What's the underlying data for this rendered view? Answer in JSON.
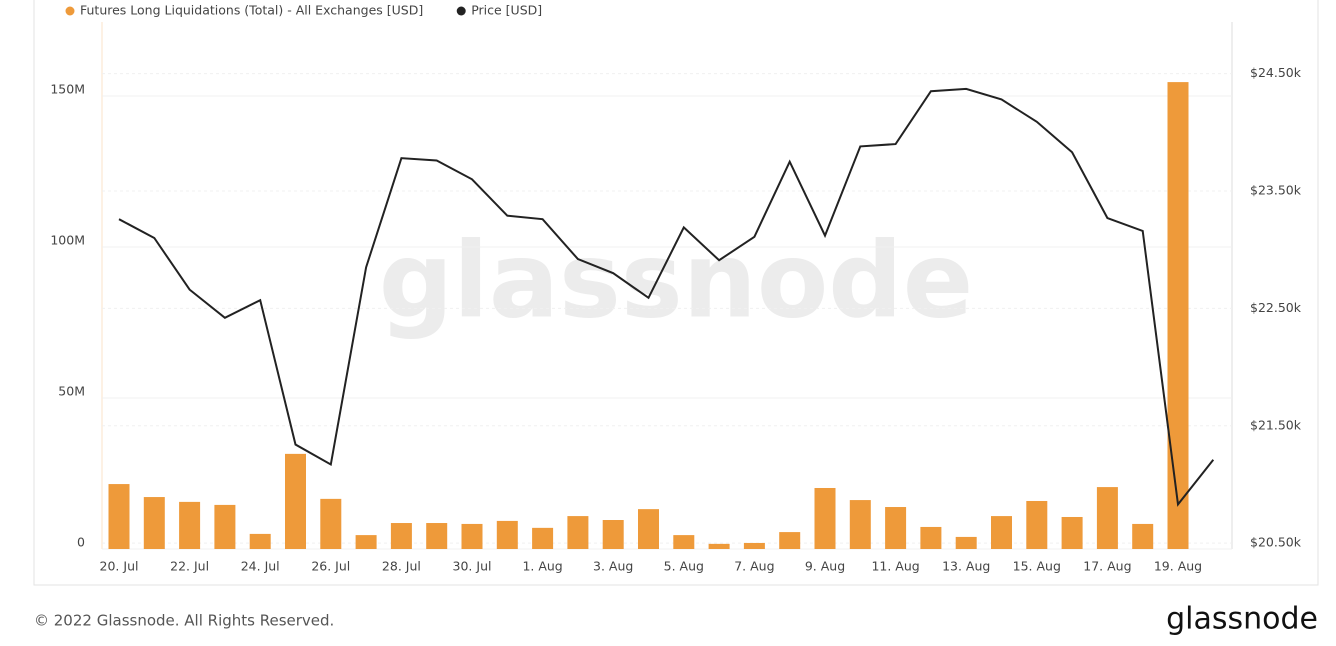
{
  "chart_data": {
    "type": "bar-line",
    "categories": [
      "20. Jul",
      null,
      "22. Jul",
      null,
      "24. Jul",
      null,
      "26. Jul",
      null,
      "28. Jul",
      null,
      "30. Jul",
      null,
      "1. Aug",
      null,
      "3. Aug",
      null,
      "5. Aug",
      null,
      "7. Aug",
      null,
      "9. Aug",
      null,
      "11. Aug",
      null,
      "13. Aug",
      null,
      "15. Aug",
      null,
      "17. Aug",
      null,
      "19. Aug",
      null
    ],
    "series": [
      {
        "name": "Futures Long Liquidations (Total) - All Exchanges [USD]",
        "color": "#ee9a3a",
        "values": [
          21500000,
          17200000,
          15600000,
          14600000,
          5000000,
          31500000,
          16600000,
          4600000,
          8600000,
          8600000,
          8300000,
          9300000,
          7000000,
          10900000,
          9600000,
          13200000,
          4600000,
          1700000,
          2000000,
          5600000,
          20200000,
          16200000,
          13900000,
          7300000,
          4000000,
          10900000,
          15900000,
          10600000,
          20500000,
          8300000,
          154600000,
          null
        ]
      },
      {
        "name": "Price [USD]",
        "color": "#222222",
        "axis": "y2",
        "values": [
          23260,
          23100,
          22660,
          22420,
          22570,
          21340,
          21170,
          22850,
          23780,
          23760,
          23600,
          23290,
          23260,
          22920,
          22800,
          22590,
          23190,
          22910,
          23110,
          23750,
          23120,
          23880,
          23900,
          24350,
          24370,
          24280,
          24090,
          23830,
          23270,
          23160,
          20830,
          21210
        ]
      }
    ],
    "ylim": [
      0,
      174500000
    ],
    "yticks": [
      0,
      {
        "value": 50000000,
        "label": "50M"
      },
      {
        "value": 100000000,
        "label": "100M"
      },
      {
        "value": 150000000,
        "label": "150M"
      }
    ],
    "y2lim": [
      20450,
      24940
    ],
    "y2ticks": [
      {
        "value": 20500,
        "label": "$20.50k"
      },
      {
        "value": 21500,
        "label": "$21.50k"
      },
      {
        "value": 22500,
        "label": "$22.50k"
      },
      {
        "value": 23500,
        "label": "$23.50k"
      },
      {
        "value": 24500,
        "label": "$24.50k"
      }
    ],
    "grid": true,
    "legend": "top-left"
  },
  "watermark": "glassnode",
  "footer": "© 2022 Glassnode. All Rights Reserved.",
  "logo": "glassnode"
}
